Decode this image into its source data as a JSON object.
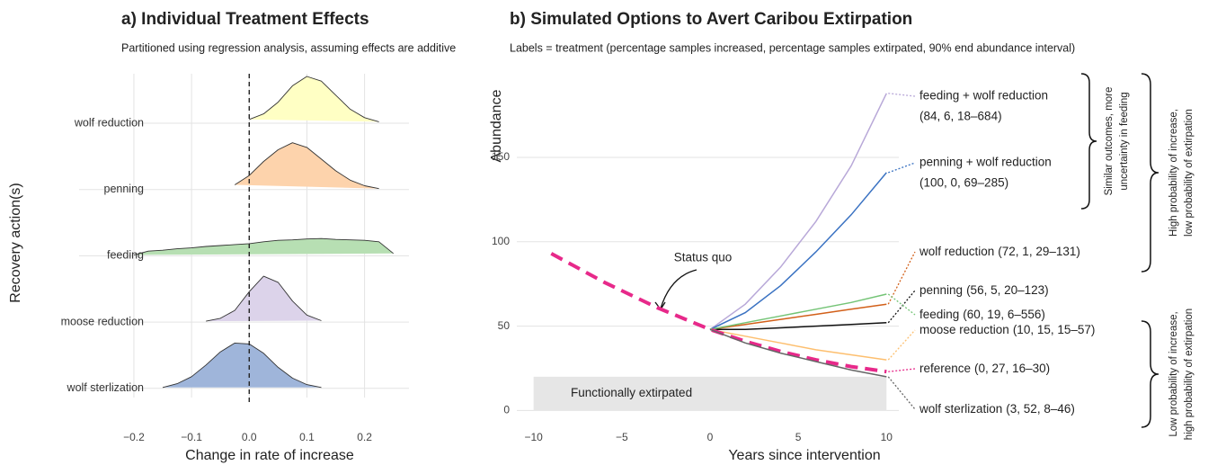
{
  "chart_data": [
    {
      "type": "ridgeline",
      "title": "a) Individual Treatment Effects",
      "subtitle": "Partitioned using regression analysis, assuming effects are additive",
      "y_label": "Recovery action(s)",
      "x_label": "Change in rate of increase",
      "categories": [
        "wolf reduction",
        "penning",
        "feeding",
        "moose reduction",
        "wolf sterlization"
      ],
      "x": [
        -0.2,
        -0.175,
        -0.15,
        -0.125,
        -0.1,
        -0.075,
        -0.05,
        -0.025,
        0,
        0.025,
        0.05,
        0.075,
        0.1,
        0.125,
        0.15,
        0.175,
        0.2,
        0.225,
        0.25
      ],
      "series": [
        {
          "name": "wolf reduction",
          "color": "#ffffc4",
          "values": [
            null,
            null,
            null,
            null,
            null,
            null,
            null,
            null,
            0.08,
            0.2,
            0.45,
            0.8,
            1.0,
            0.9,
            0.6,
            0.3,
            0.12,
            0.03,
            null
          ]
        },
        {
          "name": "penning",
          "color": "#fdd3ac",
          "values": [
            null,
            null,
            null,
            null,
            null,
            null,
            null,
            0.1,
            0.3,
            0.6,
            0.85,
            1.0,
            0.9,
            0.65,
            0.4,
            0.2,
            0.08,
            0.02,
            null
          ]
        },
        {
          "name": "feeding",
          "color": "#b7dfb3",
          "values": [
            0.02,
            0.1,
            0.12,
            0.15,
            0.17,
            0.2,
            0.22,
            0.24,
            0.26,
            0.3,
            0.33,
            0.34,
            0.36,
            0.37,
            0.35,
            0.34,
            0.33,
            0.3,
            0.05
          ]
        },
        {
          "name": "moose reduction",
          "color": "#dcd3ea",
          "values": [
            null,
            null,
            null,
            null,
            null,
            0.02,
            0.08,
            0.25,
            0.65,
            0.98,
            0.85,
            0.45,
            0.15,
            0.03,
            null,
            null,
            null,
            null,
            null
          ]
        },
        {
          "name": "wolf sterlization",
          "color": "#9fb5da",
          "values": [
            null,
            null,
            0.02,
            0.1,
            0.25,
            0.5,
            0.78,
            0.97,
            0.95,
            0.75,
            0.45,
            0.22,
            0.08,
            0.02,
            null,
            null,
            null,
            null,
            null
          ]
        }
      ],
      "xlim": [
        -0.295,
        0.277
      ],
      "xticks": [
        {
          "value": -0.2,
          "label": "−0.2"
        },
        {
          "value": -0.1,
          "label": "−0.1"
        },
        {
          "value": 0,
          "label": "0.0"
        },
        {
          "value": 0.1,
          "label": "0.1"
        },
        {
          "value": 0.2,
          "label": "0.2"
        }
      ],
      "vline": 0,
      "grid": true
    },
    {
      "type": "line",
      "title": "b) Simulated Options to Avert Caribou Extirpation",
      "subtitle": "Labels = treatment (percentage samples increased, percentage samples extirpated, 90% end abundance interval)",
      "y_label": "Abundance",
      "x_label": "Years since intervention",
      "x": [
        -9,
        -6,
        -3,
        0,
        2,
        4,
        6,
        8,
        10
      ],
      "series": [
        {
          "name": "feeding + wolf reduction",
          "stats": "(84, 6, 18–684)",
          "color": "#b8a8d8",
          "values": [
            null,
            null,
            null,
            48,
            63,
            85,
            112,
            145,
            188
          ]
        },
        {
          "name": "penning + wolf reduction",
          "stats": "(100, 0, 69–285)",
          "color": "#3a72c2",
          "values": [
            null,
            null,
            null,
            48,
            58,
            74,
            94,
            116,
            141
          ]
        },
        {
          "name": "wolf reduction",
          "stats": "(72, 1, 29–131)",
          "color": "#d2601a",
          "values": [
            null,
            null,
            null,
            48,
            51,
            54,
            57,
            60,
            63
          ]
        },
        {
          "name": "penning",
          "stats": "(56, 5, 20–123)",
          "color": "#111111",
          "values": [
            null,
            null,
            null,
            48,
            48,
            49,
            50,
            51,
            52
          ]
        },
        {
          "name": "feeding",
          "stats": "(60, 19, 6–556)",
          "color": "#74c476",
          "values": [
            null,
            null,
            null,
            48,
            52,
            56,
            60,
            64,
            69
          ]
        },
        {
          "name": "moose reduction",
          "stats": "(10, 15, 15–57)",
          "color": "#fdbf6f",
          "values": [
            null,
            null,
            null,
            48,
            44,
            40,
            36,
            33,
            30
          ]
        },
        {
          "name": "reference",
          "stats": "(0, 27, 16–30)",
          "color": "#e7298a",
          "linestyle": "dashed",
          "values": [
            93,
            76,
            61,
            48,
            41,
            35,
            30,
            26,
            23
          ]
        },
        {
          "name": "wolf sterlization",
          "stats": "(3, 52, 8–46)",
          "color": "#666666",
          "values": [
            null,
            null,
            null,
            48,
            40,
            34,
            29,
            24,
            20
          ]
        }
      ],
      "xlim": [
        -10.95,
        10.7
      ],
      "ylim": [
        -3,
        198
      ],
      "xticks": [
        {
          "value": -10,
          "label": "−10"
        },
        {
          "value": -5,
          "label": "−5"
        },
        0,
        5,
        10
      ],
      "yticks": [
        0,
        50,
        100,
        150
      ],
      "grid": "y",
      "band": {
        "label": "Functionally extirpated",
        "range": [
          0,
          20
        ]
      },
      "annotations": [
        {
          "lines": [
            "Status quo"
          ]
        },
        {
          "lines": [
            "Similar outcomes, more",
            "uncertainty in feeding"
          ]
        },
        {
          "lines": [
            "High probability of increase,",
            "low probability of extirpation"
          ]
        },
        {
          "lines": [
            "Low probability of increase,",
            "high probability of extirpation"
          ]
        }
      ]
    }
  ]
}
